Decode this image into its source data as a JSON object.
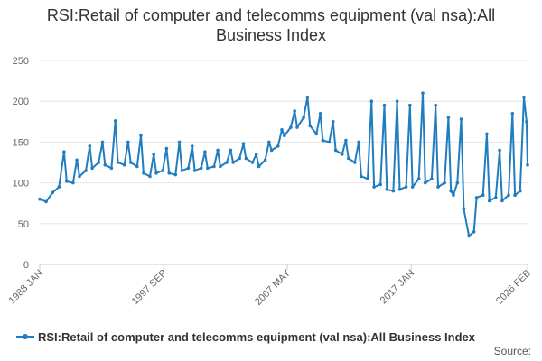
{
  "chart_data": {
    "type": "line",
    "title": "RSI:Retail of computer and telecomms equipment (val nsa):All Business Index",
    "xlabel": "",
    "ylabel": "",
    "ylim": [
      0,
      250
    ],
    "yticks": [
      0,
      50,
      100,
      150,
      200,
      250
    ],
    "grid": true,
    "legend_position": "bottom",
    "x_start": "1988 JAN",
    "x_end": "2026 FEB",
    "xticks": [
      {
        "label": "1988 JAN",
        "year": 1988.0
      },
      {
        "label": "1997 SEP",
        "year": 1997.67
      },
      {
        "label": "2007 MAY",
        "year": 2007.33
      },
      {
        "label": "2017 JAN",
        "year": 2017.0
      },
      {
        "label": "2026 FEB",
        "year": 2026.08
      }
    ],
    "series": [
      {
        "name": "RSI:Retail of computer and telecomms equipment (val nsa):All Business Index",
        "color": "#1f7dc0",
        "points": [
          [
            1988.0,
            80
          ],
          [
            1988.5,
            77
          ],
          [
            1989.0,
            88
          ],
          [
            1989.5,
            95
          ],
          [
            1989.9,
            138
          ],
          [
            1990.1,
            102
          ],
          [
            1990.6,
            100
          ],
          [
            1990.9,
            128
          ],
          [
            1991.1,
            108
          ],
          [
            1991.6,
            115
          ],
          [
            1991.9,
            145
          ],
          [
            1992.1,
            118
          ],
          [
            1992.6,
            125
          ],
          [
            1992.9,
            150
          ],
          [
            1993.1,
            122
          ],
          [
            1993.6,
            118
          ],
          [
            1993.9,
            176
          ],
          [
            1994.1,
            125
          ],
          [
            1994.6,
            122
          ],
          [
            1994.9,
            150
          ],
          [
            1995.1,
            125
          ],
          [
            1995.6,
            120
          ],
          [
            1995.9,
            158
          ],
          [
            1996.1,
            112
          ],
          [
            1996.6,
            108
          ],
          [
            1996.9,
            135
          ],
          [
            1997.1,
            112
          ],
          [
            1997.6,
            115
          ],
          [
            1997.9,
            142
          ],
          [
            1998.1,
            112
          ],
          [
            1998.6,
            110
          ],
          [
            1998.9,
            150
          ],
          [
            1999.1,
            115
          ],
          [
            1999.6,
            118
          ],
          [
            1999.9,
            145
          ],
          [
            2000.1,
            115
          ],
          [
            2000.6,
            118
          ],
          [
            2000.9,
            138
          ],
          [
            2001.1,
            118
          ],
          [
            2001.6,
            120
          ],
          [
            2001.9,
            140
          ],
          [
            2002.1,
            120
          ],
          [
            2002.6,
            125
          ],
          [
            2002.9,
            140
          ],
          [
            2003.1,
            125
          ],
          [
            2003.6,
            130
          ],
          [
            2003.9,
            148
          ],
          [
            2004.1,
            130
          ],
          [
            2004.6,
            125
          ],
          [
            2004.9,
            135
          ],
          [
            2005.1,
            120
          ],
          [
            2005.6,
            128
          ],
          [
            2005.9,
            150
          ],
          [
            2006.1,
            140
          ],
          [
            2006.6,
            145
          ],
          [
            2006.9,
            165
          ],
          [
            2007.1,
            158
          ],
          [
            2007.6,
            168
          ],
          [
            2007.9,
            188
          ],
          [
            2008.1,
            168
          ],
          [
            2008.6,
            180
          ],
          [
            2008.9,
            205
          ],
          [
            2009.1,
            170
          ],
          [
            2009.6,
            160
          ],
          [
            2009.9,
            185
          ],
          [
            2010.1,
            152
          ],
          [
            2010.6,
            150
          ],
          [
            2010.9,
            175
          ],
          [
            2011.1,
            140
          ],
          [
            2011.6,
            135
          ],
          [
            2011.9,
            152
          ],
          [
            2012.1,
            130
          ],
          [
            2012.6,
            125
          ],
          [
            2012.9,
            150
          ],
          [
            2013.1,
            108
          ],
          [
            2013.6,
            105
          ],
          [
            2013.9,
            200
          ],
          [
            2014.1,
            95
          ],
          [
            2014.6,
            98
          ],
          [
            2014.9,
            195
          ],
          [
            2015.1,
            92
          ],
          [
            2015.6,
            90
          ],
          [
            2015.9,
            200
          ],
          [
            2016.1,
            92
          ],
          [
            2016.6,
            95
          ],
          [
            2016.9,
            195
          ],
          [
            2017.1,
            95
          ],
          [
            2017.6,
            105
          ],
          [
            2017.9,
            210
          ],
          [
            2018.1,
            100
          ],
          [
            2018.6,
            105
          ],
          [
            2018.9,
            195
          ],
          [
            2019.1,
            95
          ],
          [
            2019.6,
            100
          ],
          [
            2019.9,
            180
          ],
          [
            2020.1,
            90
          ],
          [
            2020.3,
            85
          ],
          [
            2020.6,
            100
          ],
          [
            2020.9,
            178
          ],
          [
            2021.1,
            68
          ],
          [
            2021.5,
            35
          ],
          [
            2021.9,
            40
          ],
          [
            2022.1,
            82
          ],
          [
            2022.6,
            85
          ],
          [
            2022.9,
            160
          ],
          [
            2023.1,
            78
          ],
          [
            2023.6,
            82
          ],
          [
            2023.9,
            140
          ],
          [
            2024.1,
            78
          ],
          [
            2024.6,
            85
          ],
          [
            2024.9,
            185
          ],
          [
            2025.1,
            85
          ],
          [
            2025.5,
            90
          ],
          [
            2025.8,
            205
          ],
          [
            2026.0,
            175
          ],
          [
            2026.08,
            122
          ]
        ]
      }
    ]
  },
  "legend": {
    "label": "RSI:Retail of computer and telecomms equipment (val nsa):All Business Index"
  },
  "footer": {
    "source_label": "Source:"
  }
}
